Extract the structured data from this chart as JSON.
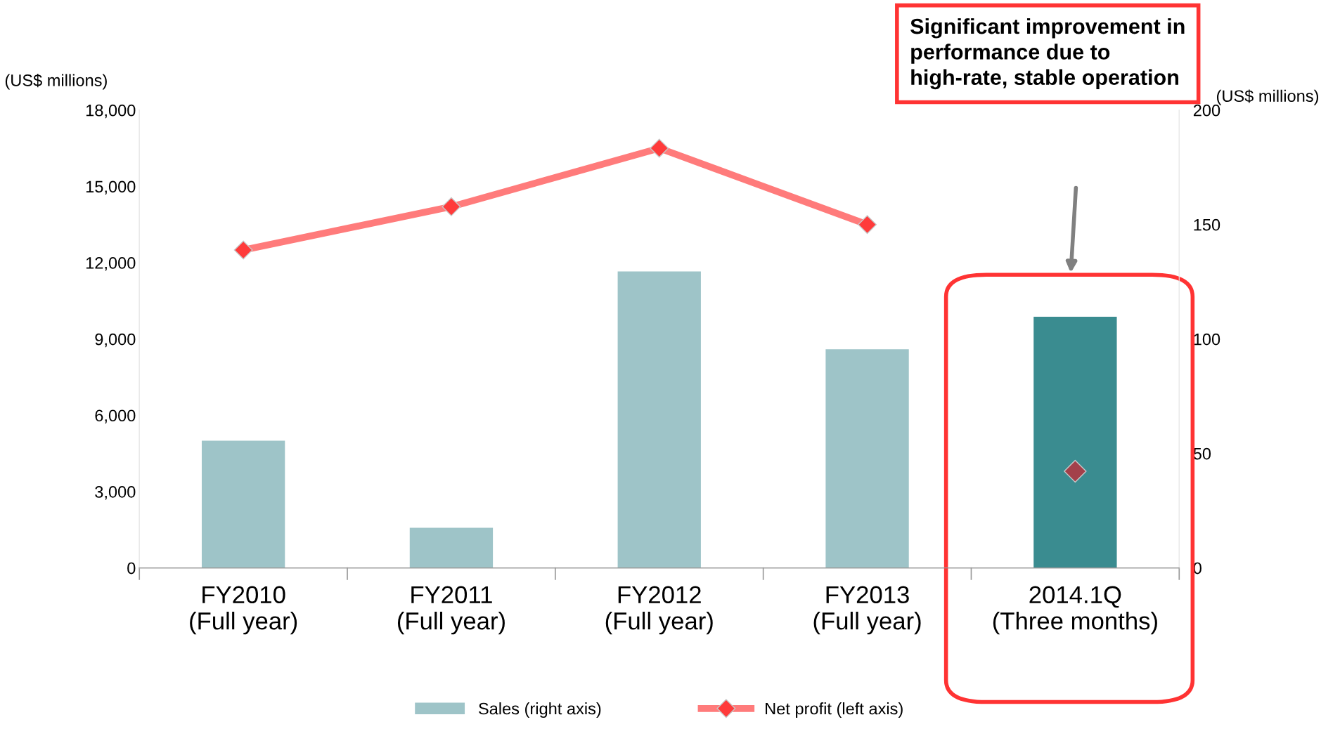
{
  "chart_data": {
    "type": "bar",
    "categories": [
      "FY2010\n(Full year)",
      "FY2011\n(Full year)",
      "FY2012\n(Full year)",
      "FY2013\n(Full year)",
      "2014.1Q\n(Three months)"
    ],
    "ylabel": "(US$ millions)",
    "y2label": "(US$ millions)",
    "ylim": [
      0,
      18000
    ],
    "yticks": [
      0,
      {
        "value": 3000,
        "label": "3,000"
      },
      {
        "value": 6000,
        "label": "6,000"
      },
      {
        "value": 9000,
        "label": "9,000"
      },
      {
        "value": 12000,
        "label": "12,000"
      },
      {
        "value": 15000,
        "label": "15,000"
      },
      {
        "value": 18000,
        "label": "18,000"
      }
    ],
    "y2lim": [
      0,
      200
    ],
    "y2ticks": [
      0,
      50,
      100,
      150,
      200
    ],
    "series": [
      {
        "name": "Sales (right axis)",
        "axis": "y2",
        "color": "#9ec4c8",
        "colors": [
          "#9ec4c8",
          "#9ec4c8",
          "#9ec4c8",
          "#9ec4c8",
          "#3a8c90"
        ],
        "values": [
          55.6,
          17.5,
          129.5,
          95.5,
          109.7
        ]
      },
      {
        "name": "Net profit (left axis)",
        "type": "line",
        "color": "#ff7b7b",
        "marker": "diamond",
        "values": [
          12500,
          14200,
          16500,
          13500,
          null
        ]
      },
      {
        "type": "scatter",
        "color": "#a3404a",
        "marker": "diamond",
        "values": [
          null,
          null,
          null,
          null,
          3800
        ]
      }
    ],
    "annotations": [
      "Significant improvement in performance due to high-rate, stable operation"
    ],
    "legend": "bottom",
    "grid": false
  }
}
